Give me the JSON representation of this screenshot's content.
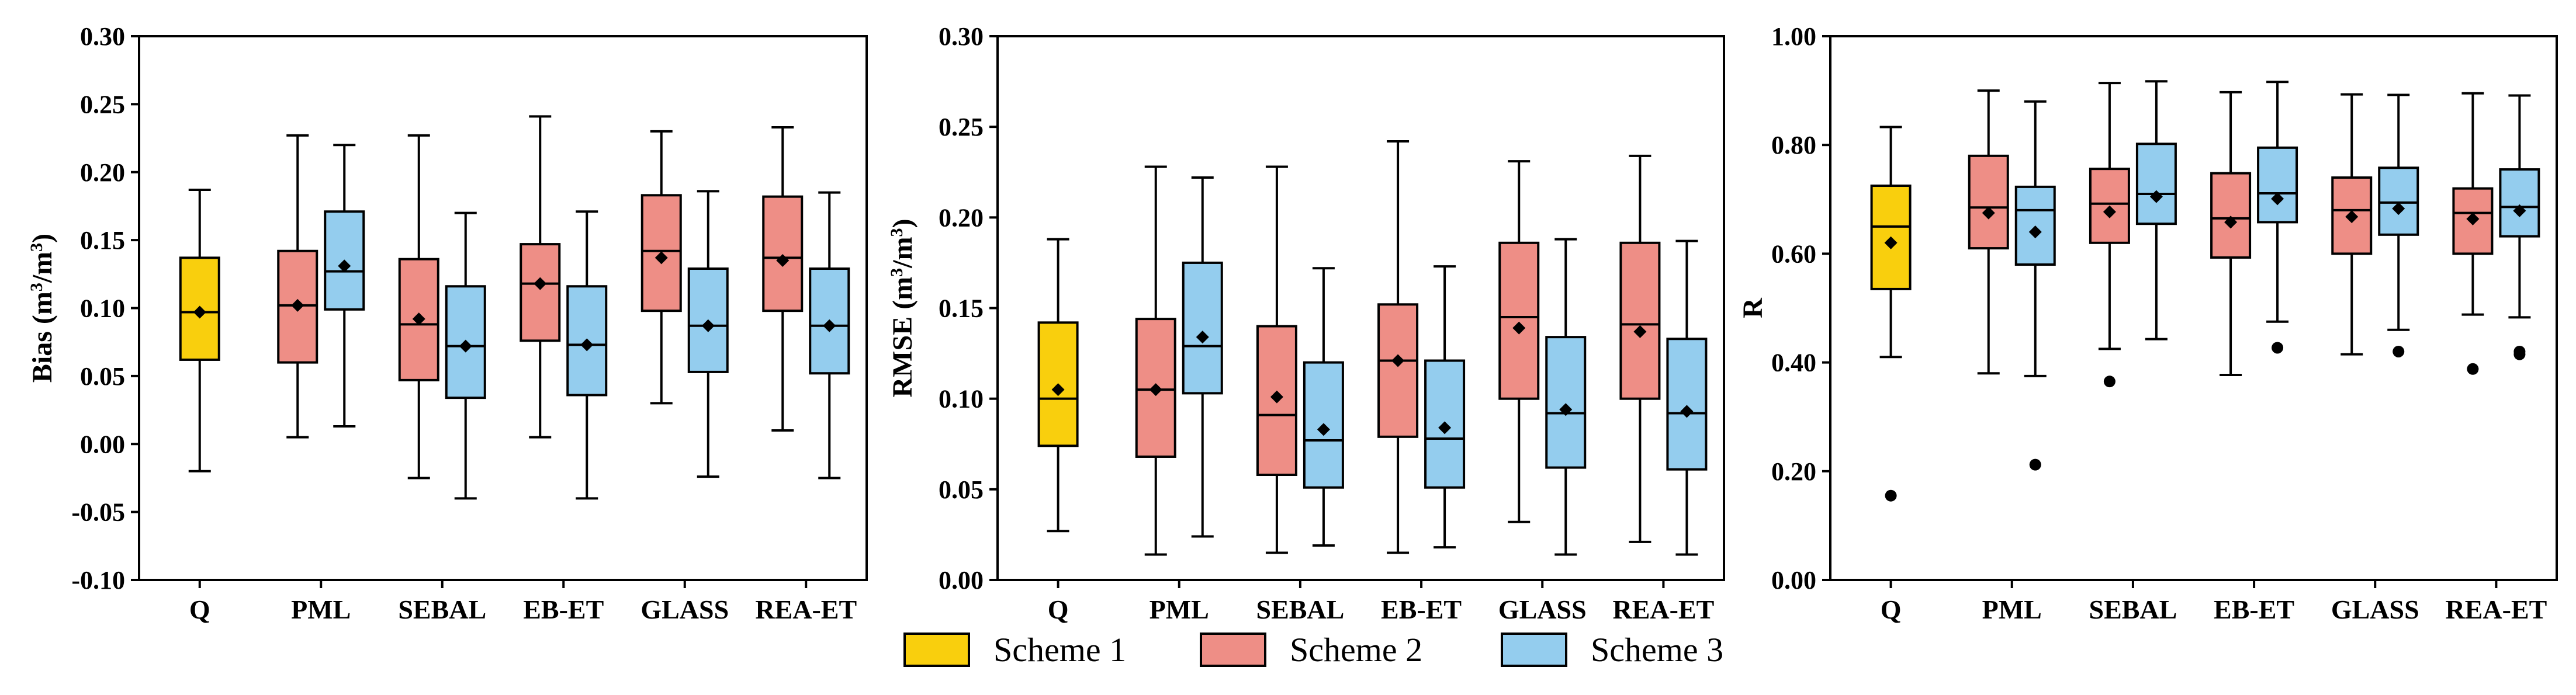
{
  "colors": {
    "scheme1": "#F9CF0D",
    "scheme2": "#EE8E86",
    "scheme3": "#94CDEE",
    "line": "#000000"
  },
  "legend": {
    "entries": [
      {
        "name": "Scheme 1",
        "color": "#F9CF0D"
      },
      {
        "name": "Scheme 2",
        "color": "#EE8E86"
      },
      {
        "name": "Scheme 3",
        "color": "#94CDEE"
      }
    ]
  },
  "chart_data": [
    {
      "type": "box",
      "id": "bias",
      "ylabel": "Bias (m3/m3)",
      "ylabel_main": "Bias (m",
      "ylabel_sup": "3",
      "ylabel_mid": "/m",
      "ylabel_end": ")",
      "ylim": [
        -0.1,
        0.3
      ],
      "yticks": [
        "-0.10",
        "-0.05",
        "0.00",
        "0.05",
        "0.10",
        "0.15",
        "0.20",
        "0.25",
        "0.30"
      ],
      "categories": [
        "Q",
        "PML",
        "SEBAL",
        "EB-ET",
        "GLASS",
        "REA-ET"
      ],
      "series": [
        {
          "name": "Scheme 1",
          "boxes": [
            {
              "category": "Q",
              "whisker_low": -0.02,
              "q1": 0.062,
              "median": 0.097,
              "q3": 0.137,
              "whisker_high": 0.187,
              "mean": 0.097,
              "outliers": []
            }
          ]
        },
        {
          "name": "Scheme 2",
          "boxes": [
            {
              "category": "PML",
              "whisker_low": 0.005,
              "q1": 0.06,
              "median": 0.102,
              "q3": 0.142,
              "whisker_high": 0.227,
              "mean": 0.102,
              "outliers": []
            },
            {
              "category": "SEBAL",
              "whisker_low": -0.025,
              "q1": 0.047,
              "median": 0.088,
              "q3": 0.136,
              "whisker_high": 0.227,
              "mean": 0.092,
              "outliers": []
            },
            {
              "category": "EB-ET",
              "whisker_low": 0.005,
              "q1": 0.076,
              "median": 0.118,
              "q3": 0.147,
              "whisker_high": 0.241,
              "mean": 0.118,
              "outliers": []
            },
            {
              "category": "GLASS",
              "whisker_low": 0.03,
              "q1": 0.098,
              "median": 0.142,
              "q3": 0.183,
              "whisker_high": 0.23,
              "mean": 0.137,
              "outliers": []
            },
            {
              "category": "REA-ET",
              "whisker_low": 0.01,
              "q1": 0.098,
              "median": 0.137,
              "q3": 0.182,
              "whisker_high": 0.233,
              "mean": 0.135,
              "outliers": []
            }
          ]
        },
        {
          "name": "Scheme 3",
          "boxes": [
            {
              "category": "PML",
              "whisker_low": 0.013,
              "q1": 0.099,
              "median": 0.127,
              "q3": 0.171,
              "whisker_high": 0.22,
              "mean": 0.131,
              "outliers": []
            },
            {
              "category": "SEBAL",
              "whisker_low": -0.04,
              "q1": 0.034,
              "median": 0.072,
              "q3": 0.116,
              "whisker_high": 0.17,
              "mean": 0.072,
              "outliers": []
            },
            {
              "category": "EB-ET",
              "whisker_low": -0.04,
              "q1": 0.036,
              "median": 0.073,
              "q3": 0.116,
              "whisker_high": 0.171,
              "mean": 0.073,
              "outliers": []
            },
            {
              "category": "GLASS",
              "whisker_low": -0.024,
              "q1": 0.053,
              "median": 0.087,
              "q3": 0.129,
              "whisker_high": 0.186,
              "mean": 0.087,
              "outliers": []
            },
            {
              "category": "REA-ET",
              "whisker_low": -0.025,
              "q1": 0.052,
              "median": 0.087,
              "q3": 0.129,
              "whisker_high": 0.185,
              "mean": 0.087,
              "outliers": []
            }
          ]
        }
      ]
    },
    {
      "type": "box",
      "id": "rmse",
      "ylabel": "RMSE (m3/m3)",
      "ylabel_main": "RMSE (m",
      "ylabel_sup": "3",
      "ylabel_mid": "/m",
      "ylabel_end": ")",
      "ylim": [
        0.0,
        0.3
      ],
      "yticks": [
        "0.00",
        "0.05",
        "0.10",
        "0.15",
        "0.20",
        "0.25",
        "0.30"
      ],
      "categories": [
        "Q",
        "PML",
        "SEBAL",
        "EB-ET",
        "GLASS",
        "REA-ET"
      ],
      "series": [
        {
          "name": "Scheme 1",
          "boxes": [
            {
              "category": "Q",
              "whisker_low": 0.027,
              "q1": 0.074,
              "median": 0.1,
              "q3": 0.142,
              "whisker_high": 0.188,
              "mean": 0.105,
              "outliers": []
            }
          ]
        },
        {
          "name": "Scheme 2",
          "boxes": [
            {
              "category": "PML",
              "whisker_low": 0.014,
              "q1": 0.068,
              "median": 0.105,
              "q3": 0.144,
              "whisker_high": 0.228,
              "mean": 0.105,
              "outliers": []
            },
            {
              "category": "SEBAL",
              "whisker_low": 0.015,
              "q1": 0.058,
              "median": 0.091,
              "q3": 0.14,
              "whisker_high": 0.228,
              "mean": 0.101,
              "outliers": []
            },
            {
              "category": "EB-ET",
              "whisker_low": 0.015,
              "q1": 0.079,
              "median": 0.121,
              "q3": 0.152,
              "whisker_high": 0.242,
              "mean": 0.121,
              "outliers": []
            },
            {
              "category": "GLASS",
              "whisker_low": 0.032,
              "q1": 0.1,
              "median": 0.145,
              "q3": 0.186,
              "whisker_high": 0.231,
              "mean": 0.139,
              "outliers": []
            },
            {
              "category": "REA-ET",
              "whisker_low": 0.021,
              "q1": 0.1,
              "median": 0.141,
              "q3": 0.186,
              "whisker_high": 0.234,
              "mean": 0.137,
              "outliers": []
            }
          ]
        },
        {
          "name": "Scheme 3",
          "boxes": [
            {
              "category": "PML",
              "whisker_low": 0.024,
              "q1": 0.103,
              "median": 0.129,
              "q3": 0.175,
              "whisker_high": 0.222,
              "mean": 0.134,
              "outliers": []
            },
            {
              "category": "SEBAL",
              "whisker_low": 0.019,
              "q1": 0.051,
              "median": 0.077,
              "q3": 0.12,
              "whisker_high": 0.172,
              "mean": 0.083,
              "outliers": []
            },
            {
              "category": "EB-ET",
              "whisker_low": 0.018,
              "q1": 0.051,
              "median": 0.078,
              "q3": 0.121,
              "whisker_high": 0.173,
              "mean": 0.084,
              "outliers": []
            },
            {
              "category": "GLASS",
              "whisker_low": 0.014,
              "q1": 0.062,
              "median": 0.092,
              "q3": 0.134,
              "whisker_high": 0.188,
              "mean": 0.094,
              "outliers": []
            },
            {
              "category": "REA-ET",
              "whisker_low": 0.014,
              "q1": 0.061,
              "median": 0.092,
              "q3": 0.133,
              "whisker_high": 0.187,
              "mean": 0.093,
              "outliers": []
            }
          ]
        }
      ]
    },
    {
      "type": "box",
      "id": "r",
      "ylabel": "R",
      "ylabel_main": "R",
      "ylabel_sup": "",
      "ylabel_mid": "",
      "ylabel_end": "",
      "ylim": [
        0.0,
        1.0
      ],
      "yticks": [
        "0.00",
        "0.20",
        "0.40",
        "0.60",
        "0.80",
        "1.00"
      ],
      "categories": [
        "Q",
        "PML",
        "SEBAL",
        "EB-ET",
        "GLASS",
        "REA-ET"
      ],
      "series": [
        {
          "name": "Scheme 1",
          "boxes": [
            {
              "category": "Q",
              "whisker_low": 0.41,
              "q1": 0.535,
              "median": 0.65,
              "q3": 0.725,
              "whisker_high": 0.833,
              "mean": 0.62,
              "outliers": [
                0.155
              ]
            }
          ]
        },
        {
          "name": "Scheme 2",
          "boxes": [
            {
              "category": "PML",
              "whisker_low": 0.38,
              "q1": 0.61,
              "median": 0.685,
              "q3": 0.78,
              "whisker_high": 0.9,
              "mean": 0.675,
              "outliers": []
            },
            {
              "category": "SEBAL",
              "whisker_low": 0.425,
              "q1": 0.62,
              "median": 0.692,
              "q3": 0.756,
              "whisker_high": 0.914,
              "mean": 0.677,
              "outliers": [
                0.365
              ]
            },
            {
              "category": "EB-ET",
              "whisker_low": 0.377,
              "q1": 0.593,
              "median": 0.665,
              "q3": 0.748,
              "whisker_high": 0.897,
              "mean": 0.658,
              "outliers": []
            },
            {
              "category": "GLASS",
              "whisker_low": 0.415,
              "q1": 0.6,
              "median": 0.68,
              "q3": 0.74,
              "whisker_high": 0.893,
              "mean": 0.668,
              "outliers": []
            },
            {
              "category": "REA-ET",
              "whisker_low": 0.488,
              "q1": 0.6,
              "median": 0.675,
              "q3": 0.72,
              "whisker_high": 0.895,
              "mean": 0.664,
              "outliers": [
                0.388
              ]
            }
          ]
        },
        {
          "name": "Scheme 3",
          "boxes": [
            {
              "category": "PML",
              "whisker_low": 0.375,
              "q1": 0.58,
              "median": 0.68,
              "q3": 0.723,
              "whisker_high": 0.88,
              "mean": 0.64,
              "outliers": [
                0.212
              ]
            },
            {
              "category": "SEBAL",
              "whisker_low": 0.443,
              "q1": 0.655,
              "median": 0.71,
              "q3": 0.802,
              "whisker_high": 0.917,
              "mean": 0.705,
              "outliers": []
            },
            {
              "category": "EB-ET",
              "whisker_low": 0.475,
              "q1": 0.658,
              "median": 0.711,
              "q3": 0.795,
              "whisker_high": 0.916,
              "mean": 0.701,
              "outliers": [
                0.427
              ]
            },
            {
              "category": "GLASS",
              "whisker_low": 0.46,
              "q1": 0.635,
              "median": 0.694,
              "q3": 0.758,
              "whisker_high": 0.892,
              "mean": 0.683,
              "outliers": [
                0.42
              ]
            },
            {
              "category": "REA-ET",
              "whisker_low": 0.483,
              "q1": 0.632,
              "median": 0.686,
              "q3": 0.755,
              "whisker_high": 0.891,
              "mean": 0.679,
              "outliers": [
                0.42,
                0.415
              ]
            }
          ]
        }
      ]
    }
  ]
}
